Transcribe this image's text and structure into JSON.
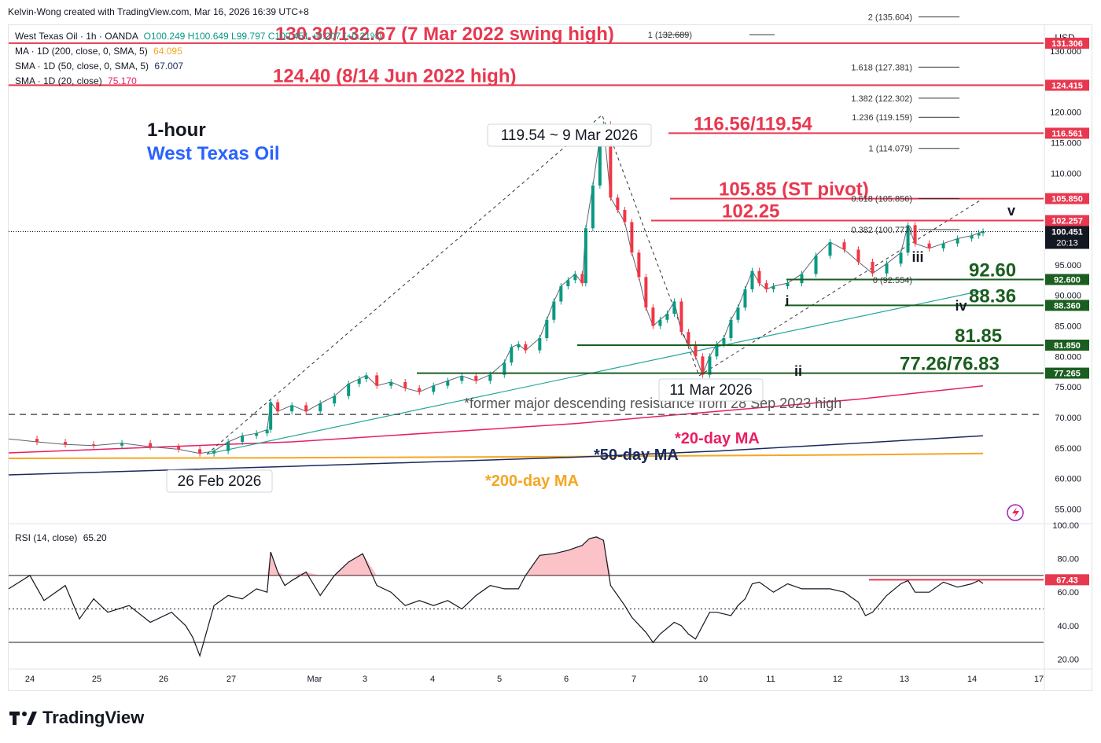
{
  "header": {
    "credit": "Kelvin-Wong created with TradingView.com, Mar 16, 2026 16:39 UTC+8"
  },
  "legend": {
    "symbol": "West Texas Oil · 1h · OANDA",
    "ohlc": "O100.249  H100.649  L99.797  C100.451  +0.207 (+0.21%)",
    "ma200_label": "MA · 1D (200, close, 0, SMA, 5)",
    "ma200_value": "64.095",
    "sma50_label": "SMA · 1D (50, close, 0, SMA, 5)",
    "sma50_value": "67.007",
    "sma20_label": "SMA · 1D (20, close)",
    "sma20_value": "75.170"
  },
  "titles": {
    "timeframe": "1-hour",
    "instrument": "West Texas Oil"
  },
  "currency": "USD",
  "colors": {
    "resistance": "#e8384f",
    "support": "#1b5e20",
    "ma20": "#e91e63",
    "ma50": "#1a2a5c",
    "ma200": "#f5a623",
    "trend": "#26a69a",
    "candle_up": "#089981",
    "candle_down": "#f23645",
    "title_blue": "#2962ff"
  },
  "chart_data": [
    {
      "type": "candlestick",
      "x_ticks": [
        "24",
        "25",
        "26",
        "27",
        "Mar",
        "3",
        "4",
        "5",
        "6",
        "7",
        "10",
        "11",
        "12",
        "13",
        "14",
        "17"
      ],
      "y_ticks": [
        "130.000",
        "120.000",
        "115.000",
        "110.000",
        "95.000",
        "90.000",
        "85.000",
        "80.000",
        "75.000",
        "70.000",
        "65.000",
        "60.000",
        "55.000"
      ],
      "ylim": [
        53,
        134
      ],
      "last_price": {
        "value": "100.451",
        "countdown": "20:13"
      },
      "price_path": [
        [
          0,
          66.5
        ],
        [
          4,
          66
        ],
        [
          8,
          65.6
        ],
        [
          12,
          65.4
        ],
        [
          16,
          65.8
        ],
        [
          20,
          65.2
        ],
        [
          24,
          64.8
        ],
        [
          27,
          64.1
        ],
        [
          29,
          64.5
        ],
        [
          31,
          66
        ],
        [
          33,
          67
        ],
        [
          35,
          67.4
        ],
        [
          36.5,
          68
        ],
        [
          37,
          72.5
        ],
        [
          38,
          71
        ],
        [
          40,
          72
        ],
        [
          42,
          71
        ],
        [
          44,
          72.3
        ],
        [
          46,
          73.5
        ],
        [
          48,
          75.5
        ],
        [
          49.5,
          76.3
        ],
        [
          50.5,
          76.9
        ],
        [
          52,
          75.2
        ],
        [
          54,
          75.8
        ],
        [
          56,
          74.8
        ],
        [
          58,
          74.2
        ],
        [
          60,
          75.2
        ],
        [
          62,
          76
        ],
        [
          64,
          76.8
        ],
        [
          66,
          76
        ],
        [
          68,
          77
        ],
        [
          70,
          79
        ],
        [
          71,
          81.5
        ],
        [
          72,
          82
        ],
        [
          73,
          81
        ],
        [
          75,
          83
        ],
        [
          76,
          86
        ],
        [
          77,
          89
        ],
        [
          78,
          91.5
        ],
        [
          79,
          92.5
        ],
        [
          80,
          93.5
        ],
        [
          81,
          92
        ],
        [
          81.5,
          101
        ],
        [
          82.5,
          108
        ],
        [
          83.5,
          116
        ],
        [
          84,
          118
        ],
        [
          85,
          106
        ],
        [
          86,
          104
        ],
        [
          87,
          102
        ],
        [
          88,
          97
        ],
        [
          89,
          93
        ],
        [
          90,
          88
        ],
        [
          91,
          85
        ],
        [
          92,
          86
        ],
        [
          93,
          87
        ],
        [
          94,
          89
        ],
        [
          95,
          84
        ],
        [
          96,
          82
        ],
        [
          97,
          80
        ],
        [
          98,
          77
        ],
        [
          99,
          80
        ],
        [
          100,
          82
        ],
        [
          101,
          83
        ],
        [
          102,
          86
        ],
        [
          103,
          88
        ],
        [
          104,
          91
        ],
        [
          105,
          94
        ],
        [
          106,
          92
        ],
        [
          107,
          91
        ],
        [
          108,
          91.5
        ],
        [
          110,
          92
        ],
        [
          112,
          93.5
        ],
        [
          114,
          96.5
        ],
        [
          116,
          98.7
        ],
        [
          118,
          97.5
        ],
        [
          120,
          95.5
        ],
        [
          122,
          93.6
        ],
        [
          124,
          95.2
        ],
        [
          126,
          97
        ],
        [
          127,
          101.5
        ],
        [
          128,
          98.5
        ],
        [
          130,
          97.7
        ],
        [
          132,
          98.5
        ],
        [
          134,
          99.3
        ],
        [
          136,
          99.8
        ],
        [
          137,
          100.2
        ],
        [
          137.6,
          100.451
        ]
      ],
      "ma20": [
        [
          0,
          64.2
        ],
        [
          40,
          66
        ],
        [
          80,
          69
        ],
        [
          100,
          71
        ],
        [
          120,
          73
        ],
        [
          137.6,
          75.17
        ]
      ],
      "ma50": [
        [
          0,
          60.6
        ],
        [
          40,
          62
        ],
        [
          80,
          63.5
        ],
        [
          100,
          64.5
        ],
        [
          120,
          65.8
        ],
        [
          137.6,
          67.007
        ]
      ],
      "ma200": [
        [
          0,
          63.3
        ],
        [
          40,
          63.4
        ],
        [
          80,
          63.6
        ],
        [
          100,
          63.75
        ],
        [
          120,
          63.9
        ],
        [
          137.6,
          64.095
        ]
      ],
      "trendline": [
        [
          28,
          64
        ],
        [
          137.6,
          90.8
        ]
      ],
      "projection": [
        [
          28,
          64
        ],
        [
          83.8,
          119.54
        ],
        [
          97.5,
          76.83
        ],
        [
          137.6,
          105.85
        ]
      ],
      "former_resistance": {
        "value": 70.5,
        "label": "*former major descending resistance from 28 Sep 2023 high"
      },
      "levels": [
        {
          "value": 131.306,
          "tag": "131.306",
          "text": "130.30/132.67 (7 Mar 2022 swing high)",
          "kind": "resistance"
        },
        {
          "value": 124.415,
          "tag": "124.415",
          "text": "124.40 (8/14 Jun 2022 high)",
          "kind": "resistance"
        },
        {
          "value": 116.561,
          "tag": "116.561",
          "text": "116.56/119.54",
          "kind": "resistance"
        },
        {
          "value": 105.85,
          "tag": "105.850",
          "text": "105.85 (ST pivot)",
          "kind": "resistance"
        },
        {
          "value": 102.257,
          "tag": "102.257",
          "text": "102.25",
          "kind": "resistance"
        },
        {
          "value": 92.6,
          "tag": "92.600",
          "text": "92.60",
          "kind": "support"
        },
        {
          "value": 88.36,
          "tag": "88.360",
          "text": "88.36",
          "kind": "support"
        },
        {
          "value": 81.85,
          "tag": "81.850",
          "text": "81.85",
          "kind": "support"
        },
        {
          "value": 77.265,
          "tag": "77.265",
          "text": "77.26/76.83",
          "kind": "support"
        }
      ],
      "fibs": [
        {
          "ratio": "2",
          "value": 135.604,
          "label": "2 (135.604)"
        },
        {
          "ratio": "1",
          "value": 132.689,
          "label": "1 (132.689)"
        },
        {
          "ratio": "1.618",
          "value": 127.381,
          "label": "1.618 (127.381)"
        },
        {
          "ratio": "1.382",
          "value": 122.302,
          "label": "1.382 (122.302)"
        },
        {
          "ratio": "1.236",
          "value": 119.159,
          "label": "1.236 (119.159)"
        },
        {
          "ratio": "1",
          "value": 114.079,
          "label": "1 (114.079)"
        },
        {
          "ratio": "0.618",
          "value": 105.856,
          "label": "0.618 (105.856)"
        },
        {
          "ratio": "0.382",
          "value": 100.777,
          "label": "0.382 (100.777)"
        },
        {
          "ratio": "0",
          "value": 92.554,
          "label": "0 (92.554)"
        }
      ],
      "callouts": [
        {
          "text": "119.54 ~ 9 Mar 2026"
        },
        {
          "text": "11 Mar 2026"
        },
        {
          "text": "26 Feb 2026"
        }
      ],
      "waves": [
        "i",
        "ii",
        "iii",
        "iv",
        "v"
      ],
      "ma_labels": {
        "ma20": "*20-day MA",
        "ma50": "*50-day MA",
        "ma200": "*200-day MA"
      }
    },
    {
      "type": "line",
      "name": "RSI (14, close)",
      "legend": "RSI (14, close)",
      "current": "65.20",
      "ylim": [
        15,
        100
      ],
      "y_ticks": [
        "100.00",
        "80.00",
        "60.00",
        "40.00",
        "20.00"
      ],
      "bands": [
        70,
        50,
        30
      ],
      "resistance": {
        "value": 67.43,
        "tag": "67.43"
      },
      "values": [
        [
          0,
          62
        ],
        [
          3,
          70
        ],
        [
          5,
          55
        ],
        [
          8,
          64
        ],
        [
          10,
          44
        ],
        [
          12,
          56
        ],
        [
          14,
          48
        ],
        [
          17,
          52
        ],
        [
          20,
          42
        ],
        [
          23,
          48
        ],
        [
          25,
          40
        ],
        [
          26,
          33
        ],
        [
          27,
          22
        ],
        [
          29,
          52
        ],
        [
          31,
          58
        ],
        [
          33,
          56
        ],
        [
          35,
          62
        ],
        [
          36.5,
          60
        ],
        [
          37,
          84
        ],
        [
          38,
          72
        ],
        [
          39,
          64
        ],
        [
          40,
          67
        ],
        [
          42,
          72
        ],
        [
          44,
          58
        ],
        [
          46,
          70
        ],
        [
          48,
          78
        ],
        [
          50,
          83
        ],
        [
          52,
          64
        ],
        [
          54,
          60
        ],
        [
          56,
          52
        ],
        [
          58,
          55
        ],
        [
          60,
          52
        ],
        [
          62,
          55
        ],
        [
          64,
          50
        ],
        [
          66,
          58
        ],
        [
          68,
          64
        ],
        [
          70,
          62
        ],
        [
          72,
          62
        ],
        [
          73,
          70
        ],
        [
          75,
          82
        ],
        [
          77,
          83
        ],
        [
          79,
          85
        ],
        [
          81,
          88
        ],
        [
          82,
          92
        ],
        [
          83,
          93
        ],
        [
          84,
          91
        ],
        [
          85,
          64
        ],
        [
          86,
          58
        ],
        [
          87,
          52
        ],
        [
          88,
          45
        ],
        [
          90,
          36
        ],
        [
          91,
          30
        ],
        [
          92,
          35
        ],
        [
          94,
          42
        ],
        [
          95,
          40
        ],
        [
          96,
          35
        ],
        [
          97,
          32
        ],
        [
          98,
          40
        ],
        [
          99,
          48
        ],
        [
          100,
          48
        ],
        [
          102,
          46
        ],
        [
          103,
          52
        ],
        [
          104,
          56
        ],
        [
          105,
          65
        ],
        [
          106,
          66
        ],
        [
          108,
          60
        ],
        [
          110,
          65
        ],
        [
          112,
          62
        ],
        [
          114,
          62
        ],
        [
          116,
          62
        ],
        [
          118,
          60
        ],
        [
          120,
          54
        ],
        [
          121,
          46
        ],
        [
          122,
          48
        ],
        [
          124,
          58
        ],
        [
          126,
          65
        ],
        [
          127,
          67
        ],
        [
          128,
          60
        ],
        [
          130,
          60
        ],
        [
          132,
          66
        ],
        [
          134,
          63
        ],
        [
          136,
          65
        ],
        [
          137,
          67
        ],
        [
          137.6,
          65.2
        ]
      ]
    }
  ],
  "footer": {
    "brand": "TradingView"
  }
}
